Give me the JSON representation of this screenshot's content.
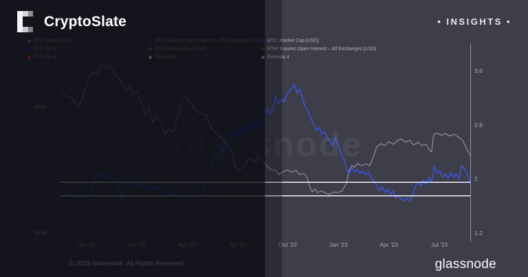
{
  "header": {
    "brand": "CryptoSlate",
    "badge": "• INSIGHTS •"
  },
  "watermark": "glassnode",
  "footer": {
    "copyright": "© 2023 Glassnode. All Rights Reserved.",
    "brand": "glassnode"
  },
  "colors": {
    "background_light": "#3e3e4a",
    "background_dark": "#17171f",
    "btc_price_line": "#a8a8b3",
    "oi_ratio_line": "#3c56ef",
    "formula_line": "#f5f5f8",
    "legend_gray": "#9a9aa4",
    "legend_blue": "#3c56ef",
    "legend_orange": "#f25a0f",
    "legend_gold": "#9a7b24",
    "legend_white": "#ffffff"
  },
  "chart_data": {
    "type": "line",
    "x_unit": "months since chart start (mid-Aug 2021)",
    "x_ticks": [
      {
        "label": "Oct '21",
        "m": 1.5
      },
      {
        "label": "Jan '22",
        "m": 4.5
      },
      {
        "label": "Apr '22",
        "m": 7.5
      },
      {
        "label": "Jul '22",
        "m": 10.5
      },
      {
        "label": "Oct '22",
        "m": 13.5
      },
      {
        "label": "Jan '23",
        "m": 16.5
      },
      {
        "label": "Apr '23",
        "m": 19.5
      },
      {
        "label": "Jul '23",
        "m": 22.5
      }
    ],
    "left_axis": {
      "scale": "log",
      "unit": "USD (thousands)",
      "ticks": [
        {
          "label": "$40k",
          "value": 40
        },
        {
          "label": "$10k",
          "value": 10
        }
      ]
    },
    "right_axis": {
      "scale": "linear",
      "range": [
        1.2,
        3.6
      ],
      "ticks": [
        {
          "label": "3.6",
          "value": 3.6
        },
        {
          "label": "2.8",
          "value": 2.8
        },
        {
          "label": "2",
          "value": 2
        },
        {
          "label": "1.2",
          "value": 1.2
        }
      ]
    },
    "legend_columns": [
      [
        {
          "color": "#9a9aa4",
          "label": "BTC: Price [USD]"
        },
        {
          "color": "#3c56ef",
          "label": "BTC: OI %"
        },
        {
          "color": "#f25a0f",
          "label": "ETH: OI %"
        }
      ],
      [
        {
          "color": "#3c56ef",
          "label": "BTC: Futures Open Interest – All Exchanges [USD]"
        },
        {
          "color": "#9a7b24",
          "label": "ETH: Market Cap [USD]"
        },
        {
          "color": "#ffffff",
          "label": "Formula 3"
        }
      ],
      [
        {
          "color": "#3c56ef",
          "label": "BTC: Market Cap [USD]"
        },
        {
          "color": "#9a7b24",
          "label": "ETH: Futures Open Interest – All Exchanges [USD]"
        },
        {
          "color": "#ffffff",
          "label": "Formula 4"
        }
      ]
    ],
    "hlines": [
      {
        "name": "Formula 3",
        "axis": "right",
        "value": 1.95,
        "color": "#f5f5f8"
      },
      {
        "name": "Formula 4",
        "axis": "right",
        "value": 1.75,
        "color": "#f5f5f8"
      }
    ],
    "series": [
      {
        "name": "BTC: Price [USD]",
        "axis": "left",
        "color": "#a8a8b3",
        "width": 1.1,
        "opacity": 0.85,
        "points": [
          [
            0,
            47.3
          ],
          [
            0.33,
            44.8
          ],
          [
            0.65,
            44.2
          ],
          [
            0.98,
            40
          ],
          [
            1.22,
            42.2
          ],
          [
            1.47,
            49.1
          ],
          [
            1.71,
            55.4
          ],
          [
            1.96,
            58.9
          ],
          [
            2.12,
            57.2
          ],
          [
            2.37,
            61.5
          ],
          [
            2.61,
            63
          ],
          [
            2.78,
            60.6
          ],
          [
            2.94,
            62.6
          ],
          [
            3.18,
            57.5
          ],
          [
            3.43,
            55.4
          ],
          [
            3.67,
            51.2
          ],
          [
            3.92,
            48.3
          ],
          [
            4.08,
            49.9
          ],
          [
            4.33,
            46.2
          ],
          [
            4.57,
            47.3
          ],
          [
            4.82,
            41
          ],
          [
            5.06,
            36.3
          ],
          [
            5.22,
            39
          ],
          [
            5.47,
            33.6
          ],
          [
            5.71,
            35.7
          ],
          [
            5.96,
            33.6
          ],
          [
            6.2,
            29.3
          ],
          [
            6.45,
            31.2
          ],
          [
            6.69,
            30
          ],
          [
            6.94,
            35.7
          ],
          [
            7.18,
            42.2
          ],
          [
            7.43,
            44.8
          ],
          [
            7.67,
            41.6
          ],
          [
            7.92,
            39.4
          ],
          [
            8.16,
            37.6
          ],
          [
            8.41,
            36.8
          ],
          [
            8.65,
            36.3
          ],
          [
            8.9,
            32.1
          ],
          [
            9.14,
            30.4
          ],
          [
            9.39,
            29.2
          ],
          [
            9.63,
            28
          ],
          [
            9.88,
            26
          ],
          [
            10.12,
            24.8
          ],
          [
            10.37,
            20.9
          ],
          [
            10.57,
            19.7
          ],
          [
            10.78,
            20.3
          ],
          [
            11.02,
            21.4
          ],
          [
            11.27,
            22.7
          ],
          [
            11.51,
            21.6
          ],
          [
            11.76,
            22.7
          ],
          [
            12,
            22
          ],
          [
            12.24,
            20.8
          ],
          [
            12.49,
            19.9
          ],
          [
            12.73,
            19.9
          ],
          [
            12.98,
            18.9
          ],
          [
            13.22,
            19.5
          ],
          [
            13.47,
            19.9
          ],
          [
            13.71,
            19.4
          ],
          [
            13.96,
            19.8
          ],
          [
            14.2,
            18.9
          ],
          [
            14.45,
            19.1
          ],
          [
            14.65,
            18.3
          ],
          [
            14.78,
            16.7
          ],
          [
            14.94,
            15.6
          ],
          [
            15.1,
            16.1
          ],
          [
            15.27,
            15.5
          ],
          [
            15.51,
            15.8
          ],
          [
            15.76,
            15.4
          ],
          [
            16,
            15.2
          ],
          [
            16.24,
            15.6
          ],
          [
            16.49,
            15.5
          ],
          [
            16.73,
            15.8
          ],
          [
            16.98,
            17.2
          ],
          [
            17.14,
            19.7
          ],
          [
            17.31,
            20.9
          ],
          [
            17.47,
            20.5
          ],
          [
            17.63,
            21.4
          ],
          [
            17.88,
            20.8
          ],
          [
            18.12,
            21.3
          ],
          [
            18.37,
            20.8
          ],
          [
            18.61,
            23.4
          ],
          [
            18.78,
            25.6
          ],
          [
            19.02,
            26.6
          ],
          [
            19.27,
            26
          ],
          [
            19.51,
            27.2
          ],
          [
            19.76,
            26.4
          ],
          [
            20,
            27.4
          ],
          [
            20.24,
            28
          ],
          [
            20.49,
            27
          ],
          [
            20.73,
            27.6
          ],
          [
            20.98,
            26.2
          ],
          [
            21.22,
            27
          ],
          [
            21.47,
            26
          ],
          [
            21.71,
            26.4
          ],
          [
            21.92,
            24.8
          ],
          [
            22.04,
            24.2
          ],
          [
            22.16,
            29.3
          ],
          [
            22.37,
            29.9
          ],
          [
            22.61,
            29.1
          ],
          [
            22.86,
            29.7
          ],
          [
            23.1,
            28.9
          ],
          [
            23.35,
            29.5
          ],
          [
            23.59,
            28.7
          ],
          [
            23.84,
            27.9
          ],
          [
            24.08,
            25.6
          ],
          [
            24.33,
            23.4
          ]
        ]
      },
      {
        "name": "BTC: OI %",
        "axis": "right",
        "color": "#3c56ef",
        "width": 1.4,
        "opacity": 1,
        "points": [
          [
            0,
            1.89
          ],
          [
            0.24,
            1.83
          ],
          [
            0.49,
            1.78
          ],
          [
            0.73,
            1.74
          ],
          [
            0.98,
            1.71
          ],
          [
            1.22,
            1.74
          ],
          [
            1.47,
            1.74
          ],
          [
            1.71,
            1.77
          ],
          [
            1.96,
            1.9
          ],
          [
            2.12,
            2.07
          ],
          [
            2.29,
            2.02
          ],
          [
            2.45,
            2.08
          ],
          [
            2.61,
            2.01
          ],
          [
            2.78,
            2.06
          ],
          [
            2.94,
            1.99
          ],
          [
            3.1,
            2.04
          ],
          [
            3.27,
            1.98
          ],
          [
            3.43,
            2.01
          ],
          [
            3.55,
            1.67
          ],
          [
            3.71,
            1.72
          ],
          [
            3.88,
            1.94
          ],
          [
            4.04,
            1.98
          ],
          [
            4.24,
            1.91
          ],
          [
            4.45,
            1.95
          ],
          [
            4.65,
            1.89
          ],
          [
            4.86,
            1.93
          ],
          [
            5.06,
            1.87
          ],
          [
            5.27,
            1.91
          ],
          [
            5.47,
            1.84
          ],
          [
            5.67,
            1.89
          ],
          [
            5.88,
            1.84
          ],
          [
            6.08,
            1.88
          ],
          [
            6.29,
            1.8
          ],
          [
            6.49,
            1.75
          ],
          [
            6.69,
            1.79
          ],
          [
            6.9,
            1.76
          ],
          [
            7.1,
            1.69
          ],
          [
            7.27,
            1.65
          ],
          [
            7.43,
            1.72
          ],
          [
            7.59,
            1.99
          ],
          [
            7.76,
            1.93
          ],
          [
            7.96,
            1.87
          ],
          [
            8.16,
            1.81
          ],
          [
            8.37,
            1.77
          ],
          [
            8.53,
            1.85
          ],
          [
            8.69,
            2.04
          ],
          [
            8.86,
            2.12
          ],
          [
            9.02,
            2.23
          ],
          [
            9.18,
            2.33
          ],
          [
            9.35,
            2.24
          ],
          [
            9.51,
            2.48
          ],
          [
            9.67,
            2.39
          ],
          [
            9.84,
            2.55
          ],
          [
            10,
            2.46
          ],
          [
            10.16,
            2.68
          ],
          [
            10.33,
            2.61
          ],
          [
            10.49,
            2.73
          ],
          [
            10.65,
            2.65
          ],
          [
            10.82,
            2.75
          ],
          [
            10.98,
            2.69
          ],
          [
            11.14,
            2.81
          ],
          [
            11.31,
            2.72
          ],
          [
            11.47,
            2.85
          ],
          [
            11.63,
            2.76
          ],
          [
            11.8,
            2.81
          ],
          [
            11.96,
            2.76
          ],
          [
            12.12,
            2.99
          ],
          [
            12.29,
            3.04
          ],
          [
            12.45,
            2.96
          ],
          [
            12.61,
            3.05
          ],
          [
            12.78,
            3.22
          ],
          [
            12.94,
            3.12
          ],
          [
            13.1,
            3.18
          ],
          [
            13.27,
            3.14
          ],
          [
            13.43,
            3.24
          ],
          [
            13.59,
            3.3
          ],
          [
            13.76,
            3.35
          ],
          [
            13.88,
            3.41
          ],
          [
            14.04,
            3.27
          ],
          [
            14.2,
            3.33
          ],
          [
            14.37,
            3.19
          ],
          [
            14.53,
            3.07
          ],
          [
            14.69,
            3.01
          ],
          [
            14.86,
            2.9
          ],
          [
            15.02,
            2.81
          ],
          [
            15.18,
            2.72
          ],
          [
            15.35,
            2.76
          ],
          [
            15.51,
            2.66
          ],
          [
            15.67,
            2.7
          ],
          [
            15.84,
            2.61
          ],
          [
            16,
            2.55
          ],
          [
            16.16,
            2.5
          ],
          [
            16.33,
            2.61
          ],
          [
            16.49,
            2.51
          ],
          [
            16.65,
            2.39
          ],
          [
            16.82,
            2.3
          ],
          [
            16.98,
            2.15
          ],
          [
            17.14,
            2.08
          ],
          [
            17.31,
            2.18
          ],
          [
            17.47,
            2.1
          ],
          [
            17.63,
            2.14
          ],
          [
            17.8,
            2.08
          ],
          [
            17.96,
            2.12
          ],
          [
            18.12,
            2.06
          ],
          [
            18.29,
            2.1
          ],
          [
            18.45,
            2.02
          ],
          [
            18.61,
            1.96
          ],
          [
            18.78,
            1.9
          ],
          [
            18.94,
            1.83
          ],
          [
            19.1,
            1.88
          ],
          [
            19.27,
            1.8
          ],
          [
            19.43,
            1.85
          ],
          [
            19.59,
            1.77
          ],
          [
            19.76,
            1.82
          ],
          [
            19.92,
            1.72
          ],
          [
            20.08,
            1.75
          ],
          [
            20.24,
            1.7
          ],
          [
            20.41,
            1.68
          ],
          [
            20.57,
            1.72
          ],
          [
            20.73,
            1.67
          ],
          [
            20.9,
            1.75
          ],
          [
            21.06,
            1.88
          ],
          [
            21.22,
            1.95
          ],
          [
            21.39,
            1.9
          ],
          [
            21.55,
            1.98
          ],
          [
            21.71,
            1.92
          ],
          [
            21.88,
            2.02
          ],
          [
            22.04,
            1.96
          ],
          [
            22.2,
            2.18
          ],
          [
            22.37,
            2.08
          ],
          [
            22.53,
            2.12
          ],
          [
            22.69,
            2.02
          ],
          [
            22.86,
            2.08
          ],
          [
            23.02,
            2
          ],
          [
            23.18,
            2.1
          ],
          [
            23.35,
            2.02
          ],
          [
            23.51,
            2.08
          ],
          [
            23.67,
            2
          ],
          [
            23.84,
            2.2
          ],
          [
            24,
            2.14
          ],
          [
            24.16,
            2.08
          ],
          [
            24.33,
            1.93
          ]
        ]
      }
    ]
  }
}
